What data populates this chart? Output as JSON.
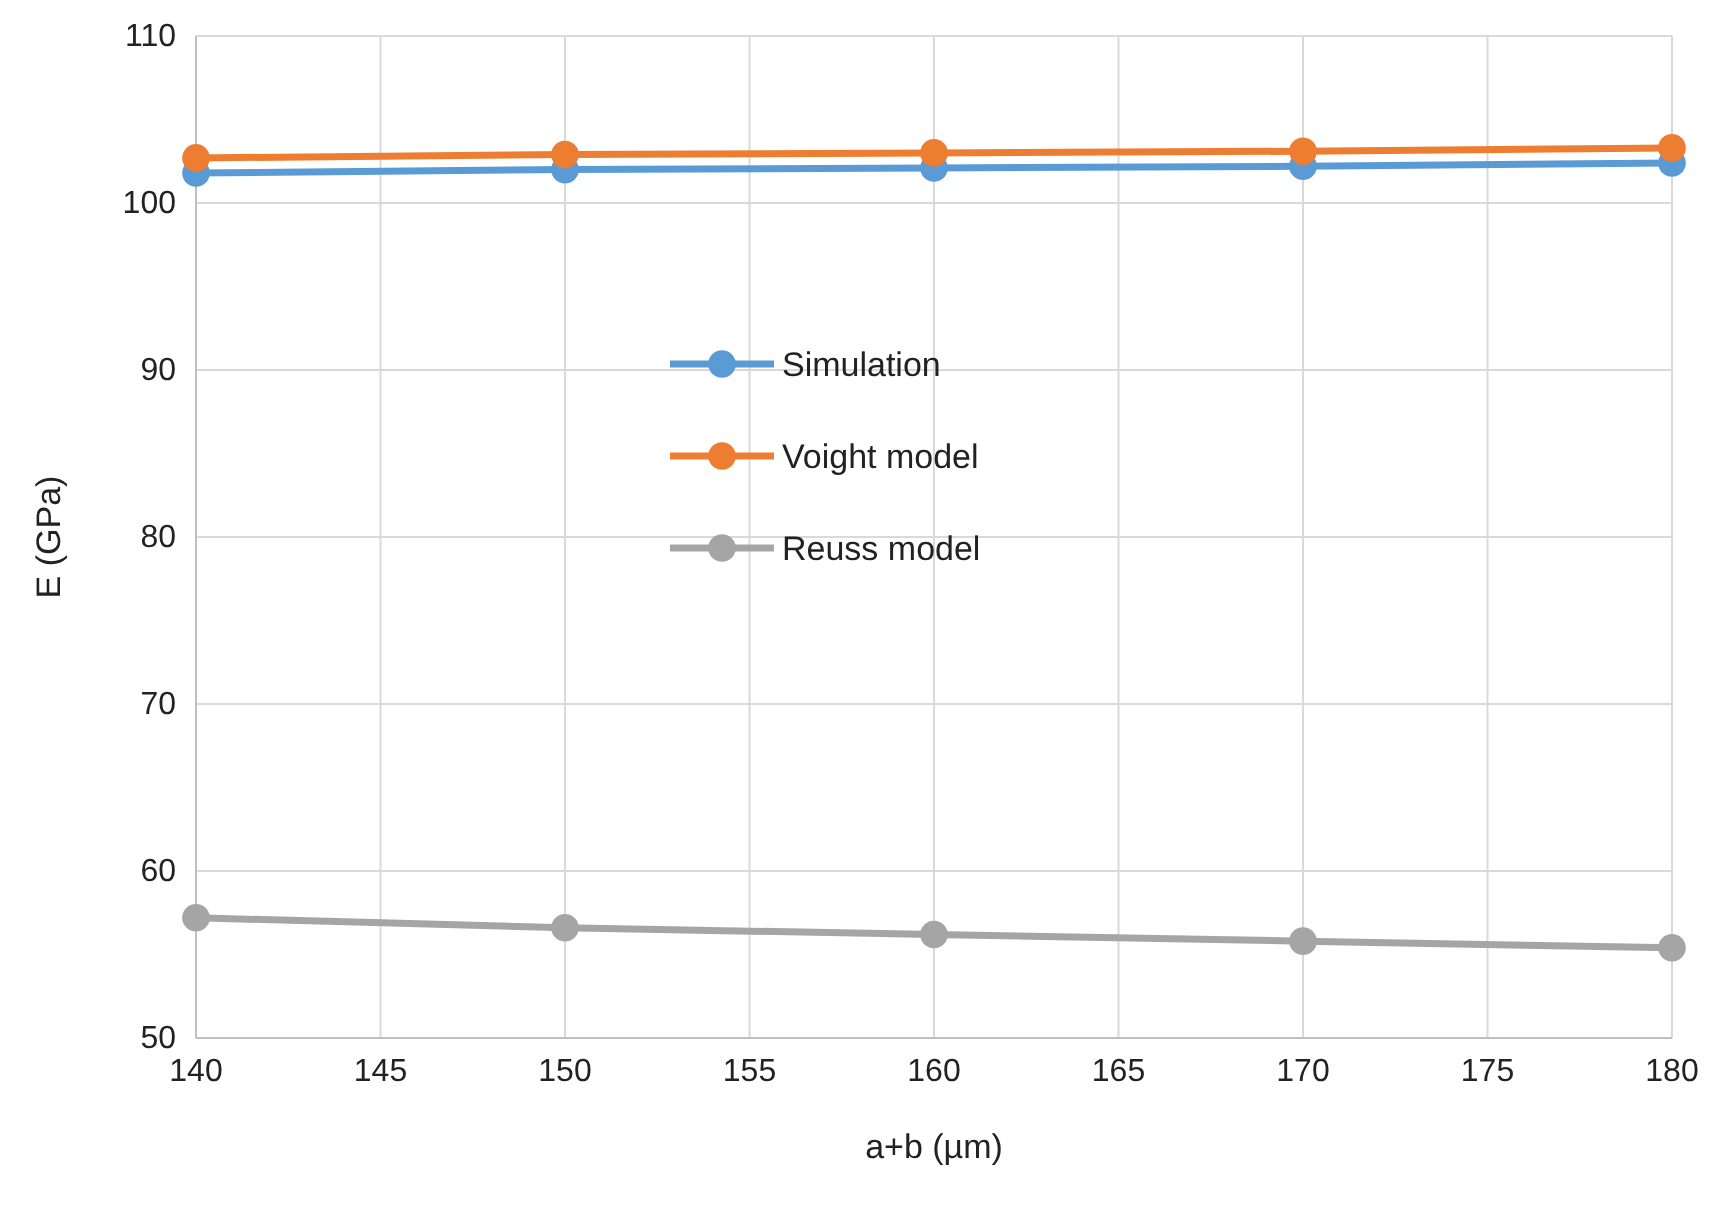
{
  "chart_data": {
    "type": "line",
    "xlabel": "a+b (µm)",
    "ylabel": "E (GPa)",
    "x": [
      140,
      150,
      160,
      170,
      180
    ],
    "series": [
      {
        "name": "Simulation",
        "color": "#5b9bd5",
        "values": [
          101.8,
          102.0,
          102.1,
          102.2,
          102.4
        ]
      },
      {
        "name": "Voight model",
        "color": "#ed7d31",
        "values": [
          102.7,
          102.9,
          103.0,
          103.1,
          103.3
        ]
      },
      {
        "name": "Reuss model",
        "color": "#a5a5a5",
        "values": [
          57.2,
          56.6,
          56.2,
          55.8,
          55.4
        ]
      }
    ],
    "xlim": [
      140,
      180
    ],
    "xticks": [
      140,
      145,
      150,
      155,
      160,
      165,
      170,
      175,
      180
    ],
    "ylim": [
      50,
      110
    ],
    "yticks": [
      50,
      60,
      70,
      80,
      90,
      100,
      110
    ],
    "grid": true,
    "legend": "center",
    "marker": "circle",
    "line_style": "solid"
  }
}
